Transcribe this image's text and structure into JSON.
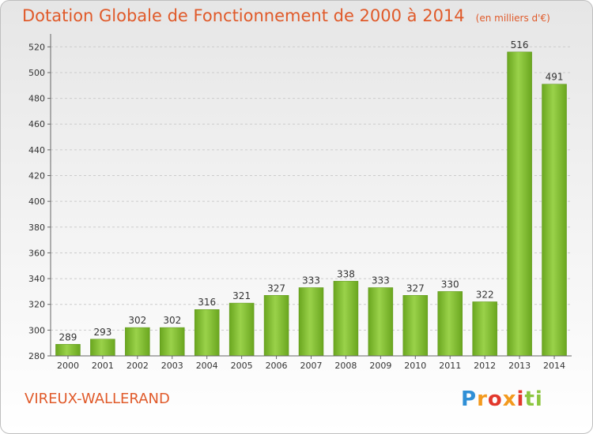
{
  "chart_data": {
    "type": "bar",
    "title": "Dotation Globale de Fonctionnement de 2000 à 2014",
    "unit_label": "(en milliers d'€)",
    "categories": [
      "2000",
      "2001",
      "2002",
      "2003",
      "2004",
      "2005",
      "2006",
      "2007",
      "2008",
      "2009",
      "2010",
      "2011",
      "2012",
      "2013",
      "2014"
    ],
    "values": [
      289,
      293,
      302,
      302,
      316,
      321,
      327,
      333,
      338,
      333,
      327,
      330,
      322,
      516,
      491
    ],
    "ylim": [
      280,
      530
    ],
    "yticks": [
      280,
      300,
      320,
      340,
      360,
      380,
      400,
      420,
      440,
      460,
      480,
      500,
      520
    ],
    "grid": true,
    "bar_color": "#7cba2a"
  },
  "commune": "VIREUX-WALLERAND",
  "logo_text": "Proxiti"
}
